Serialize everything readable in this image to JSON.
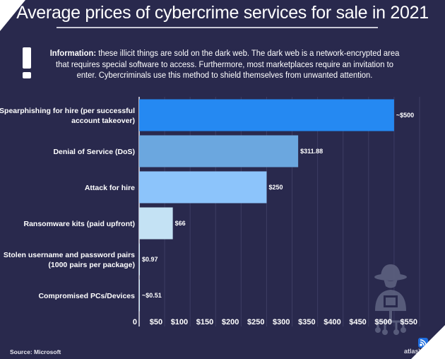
{
  "title": "Average prices of cybercrime services for sale in 2021",
  "info": {
    "label": "Information:",
    "text": " these illicit things are sold on the dark web. The dark web is a network-encrypted area that requires special software to access. Furthermore, most marketplaces require an invitation to enter. Cybercriminals use this method to shield themselves from unwanted attention."
  },
  "source": "Source: Microsoft",
  "brand": "atlasVPN",
  "chart_data": {
    "type": "bar",
    "orientation": "horizontal",
    "title": "Average prices of cybercrime services for sale in 2021",
    "categories": [
      [
        "Spearphishing for hire (per successful",
        "account takeover)"
      ],
      [
        "Denial of Service (DoS)"
      ],
      [
        "Attack for hire"
      ],
      [
        "Ransomware kits (paid upfront)"
      ],
      [
        "Stolen username and password pairs",
        "(1000 pairs per package)"
      ],
      [
        "Compromised PCs/Devices"
      ]
    ],
    "values": [
      500,
      311.88,
      250,
      66,
      0.97,
      0.51
    ],
    "data_labels": [
      "~$500",
      "$311.88",
      "$250",
      "$66",
      "$0.97",
      "~$0.51"
    ],
    "colors": [
      "#2589f2",
      "#6ba7df",
      "#8cc4fb",
      "#c4e2f4",
      "#c4e2f4",
      "#c4e2f4"
    ],
    "xlim": [
      0,
      550
    ],
    "xticks": [
      0,
      50,
      100,
      150,
      200,
      250,
      300,
      350,
      400,
      450,
      500,
      550
    ],
    "xtick_labels": [
      "0",
      "$50",
      "$100",
      "$150",
      "$200",
      "$250",
      "$300",
      "$350",
      "$400",
      "$450",
      "$500",
      "$550"
    ],
    "grid": true,
    "background": "#29294d"
  }
}
